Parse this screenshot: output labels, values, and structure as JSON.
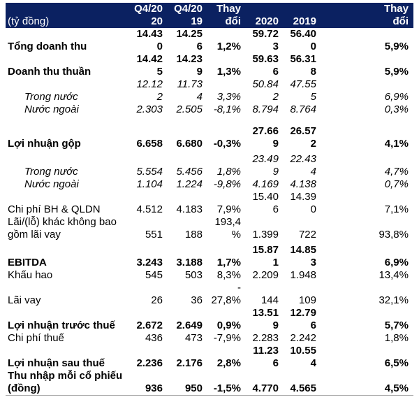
{
  "colors": {
    "header_bg": "#0B2161",
    "header_text": "#FFFFFF",
    "body_text": "#000000"
  },
  "header": {
    "cells": [
      "(tỷ đồng)",
      "Q4/20\n20",
      "Q4/20\n19",
      "Thay\nđổi",
      "2020",
      "2019",
      "Thay\nđổi"
    ]
  },
  "rows": [
    {
      "label": "Tổng doanh thu",
      "bold": true,
      "italic": false,
      "indent": false,
      "gap": "",
      "values": [
        "14.43\n0",
        "14.25\n6",
        "1,2%",
        "59.72\n3",
        "56.40\n0",
        "5,9%"
      ]
    },
    {
      "label": "Doanh thu thuần",
      "bold": true,
      "italic": false,
      "indent": false,
      "gap": "",
      "values": [
        "14.42\n5",
        "14.23\n9",
        "1,3%",
        "59.63\n6",
        "56.31\n8",
        "5,9%"
      ]
    },
    {
      "label": "Trong nước",
      "bold": false,
      "italic": true,
      "indent": true,
      "gap": "",
      "values": [
        "12.12\n2",
        "11.73\n4",
        "3,3%",
        "50.84\n2",
        "47.55\n5",
        "6,9%"
      ]
    },
    {
      "label": "Nước ngoài",
      "bold": false,
      "italic": true,
      "indent": true,
      "gap": "",
      "values": [
        "2.303",
        "2.505",
        "-8,1%",
        "8.794",
        "8.764",
        "0,3%"
      ]
    },
    {
      "label": "Lợi nhuận gộp",
      "bold": true,
      "italic": false,
      "indent": false,
      "gap": "lg",
      "values": [
        "6.658",
        "6.680",
        "-0,3%",
        "27.66\n9",
        "26.57\n2",
        "4,1%"
      ]
    },
    {
      "label": "Trong nước",
      "bold": false,
      "italic": true,
      "indent": true,
      "gap": "sm",
      "values": [
        "5.554",
        "5.456",
        "1,8%",
        "23.49\n9",
        "22.43\n4",
        "4,7%"
      ]
    },
    {
      "label": "Nước ngoài",
      "bold": false,
      "italic": true,
      "indent": true,
      "gap": "",
      "values": [
        "1.104",
        "1.224",
        "-9,8%",
        "4.169",
        "4.138",
        "0,7%"
      ]
    },
    {
      "label": "Chi phí BH & QLDN",
      "bold": false,
      "italic": false,
      "indent": false,
      "gap": "",
      "values": [
        "4.512",
        "4.183",
        "7,9%",
        "15.40\n6",
        "14.39\n0",
        "7,1%"
      ]
    },
    {
      "label": "Lãi/(lỗ) khác không bao\ngồm lãi vay",
      "bold": false,
      "italic": false,
      "indent": false,
      "gap": "",
      "values": [
        "551",
        "188",
        "193,4\n%",
        "1.399",
        "722",
        "93,8%"
      ]
    },
    {
      "label": "EBITDA",
      "bold": true,
      "italic": false,
      "indent": false,
      "gap": "sm",
      "values": [
        "3.243",
        "3.188",
        "1,7%",
        "15.87\n1",
        "14.85\n3",
        "6,9%"
      ]
    },
    {
      "label": "Khấu hao",
      "bold": false,
      "italic": false,
      "indent": false,
      "gap": "",
      "values": [
        "545",
        "503",
        "8,3%",
        "2.209",
        "1.948",
        "13,4%"
      ]
    },
    {
      "label": "Lãi vay",
      "bold": false,
      "italic": false,
      "indent": false,
      "gap": "",
      "values": [
        "26",
        "36",
        "-\n27,8%",
        "144",
        "109",
        "32,1%"
      ]
    },
    {
      "label": "Lợi nhuận trước thuế",
      "bold": true,
      "italic": false,
      "indent": false,
      "gap": "",
      "values": [
        "2.672",
        "2.649",
        "0,9%",
        "13.51\n9",
        "12.79\n6",
        "5,7%"
      ]
    },
    {
      "label": "Chi phí thuế",
      "bold": false,
      "italic": false,
      "indent": false,
      "gap": "",
      "values": [
        "436",
        "473",
        "-7,9%",
        "2.283",
        "2.242",
        "1,8%"
      ]
    },
    {
      "label": "Lợi nhuận sau thuế",
      "bold": true,
      "italic": false,
      "indent": false,
      "gap": "",
      "values": [
        "2.236",
        "2.176",
        "2,8%",
        "11.23\n6",
        "10.55\n4",
        "6,5%"
      ]
    },
    {
      "label": "Thu nhập mỗi cổ phiếu\n(đồng)",
      "bold": true,
      "italic": false,
      "indent": false,
      "gap": "",
      "values": [
        "936",
        "950",
        "-1,5%",
        "4.770",
        "4.565",
        "4,5%"
      ]
    }
  ]
}
